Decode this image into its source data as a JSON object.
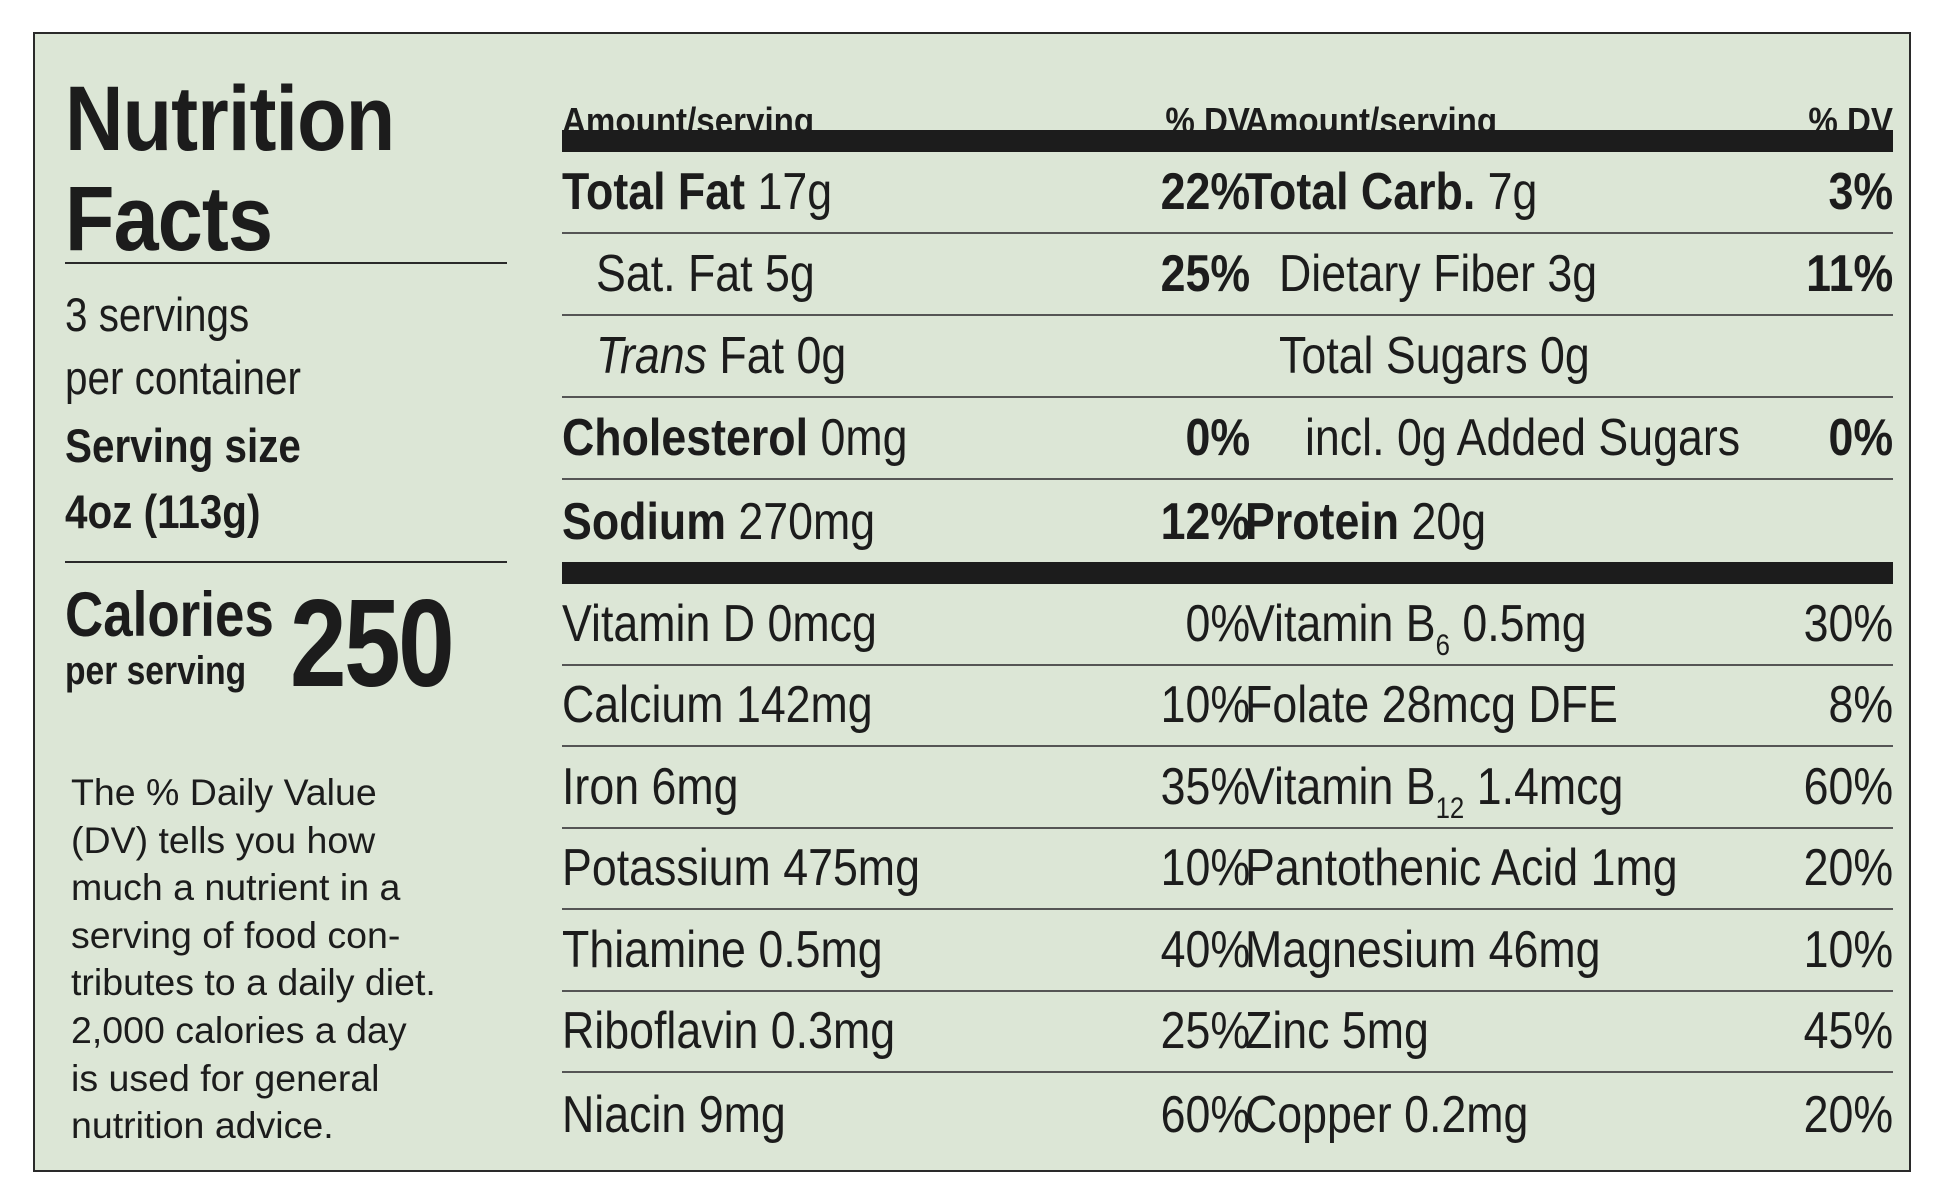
{
  "title": {
    "line1": "Nutrition",
    "line2": "Facts"
  },
  "servings": {
    "line1": "3 servings",
    "line2": "per container"
  },
  "serving_size": {
    "label": "Serving size",
    "value": "4oz (113g)"
  },
  "calories": {
    "label": "Calories",
    "sublabel": "per serving",
    "value": "250"
  },
  "note": "The % Daily Value\n(DV) tells you how\nmuch a nutrient in a\nserving of food con-\ntributes to a daily diet.\n2,000 calories a day\nis used for general\nnutrition advice.",
  "headers": {
    "amount": "Amount/serving",
    "dv": "% DV"
  },
  "left_macros": [
    {
      "name": "Total Fat",
      "amount": "17g",
      "dv": "22%"
    },
    {
      "name": "Sat. Fat",
      "amount": "5g",
      "dv": "25%"
    },
    {
      "name_italic": "Trans",
      "name": "Fat",
      "amount": "0g",
      "dv": ""
    },
    {
      "name": "Cholesterol",
      "amount": "0mg",
      "dv": "0%"
    },
    {
      "name": "Sodium",
      "amount": "270mg",
      "dv": "12%"
    }
  ],
  "right_macros": [
    {
      "name": "Total Carb.",
      "amount": "7g",
      "dv": "3%"
    },
    {
      "name": "Dietary Fiber",
      "amount": "3g",
      "dv": "11%"
    },
    {
      "name": "Total Sugars",
      "amount": "0g",
      "dv": ""
    },
    {
      "name": "incl. 0g Added Sugars",
      "amount": "",
      "dv": "0%"
    },
    {
      "name": "Protein",
      "amount": "20g",
      "dv": ""
    }
  ],
  "left_vitamins": [
    {
      "name": "Vitamin D 0mcg",
      "dv": "0%"
    },
    {
      "name": "Calcium 142mg",
      "dv": "10%"
    },
    {
      "name": "Iron 6mg",
      "dv": "35%"
    },
    {
      "name": "Potassium 475mg",
      "dv": "10%"
    },
    {
      "name": "Thiamine 0.5mg",
      "dv": "40%"
    },
    {
      "name": "Riboflavin 0.3mg",
      "dv": "25%"
    },
    {
      "name": "Niacin 9mg",
      "dv": "60%"
    }
  ],
  "right_vitamins": [
    {
      "name": "Vitamin B",
      "sub": "6",
      "amount": "0.5mg",
      "dv": "30%"
    },
    {
      "name": "Folate 28mcg DFE",
      "dv": "8%"
    },
    {
      "name": "Vitamin B",
      "sub": "12",
      "amount": "1.4mcg",
      "dv": "60%"
    },
    {
      "name": "Pantothenic Acid 1mg",
      "dv": "20%"
    },
    {
      "name": "Magnesium 46mg",
      "dv": "10%"
    },
    {
      "name": "Zinc 5mg",
      "dv": "45%"
    },
    {
      "name": "Copper 0.2mg",
      "dv": "20%"
    }
  ]
}
